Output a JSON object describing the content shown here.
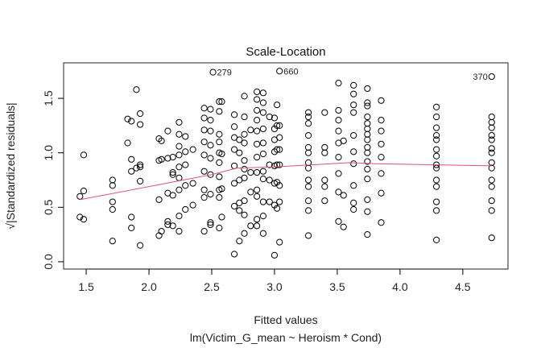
{
  "chart_data": {
    "type": "scatter",
    "title": "Scale-Location",
    "xlabel": "Fitted values",
    "subtitle": "lm(Victim_G_mean ~ Heroism * Cond)",
    "ylabel": "√|Standardized residuals|",
    "xlim": [
      1.32,
      4.86
    ],
    "ylim": [
      -0.067,
      1.826
    ],
    "x_ticks": [
      1.5,
      2.0,
      2.5,
      3.0,
      3.5,
      4.0,
      4.5
    ],
    "x_tick_labels": [
      "1.5",
      "2.0",
      "2.5",
      "3.0",
      "3.5",
      "4.0",
      "4.5"
    ],
    "y_ticks": [
      0.0,
      0.5,
      1.0,
      1.5
    ],
    "y_tick_labels": [
      "0.0",
      "0.5",
      "1.0",
      "1.5"
    ],
    "grid": false,
    "line_color": "#DF536B",
    "annotations": [
      {
        "label": "279",
        "x": 2.51,
        "y": 1.74,
        "side": "right"
      },
      {
        "label": "660",
        "x": 3.04,
        "y": 1.75,
        "side": "right"
      },
      {
        "label": "370",
        "x": 4.73,
        "y": 1.7,
        "side": "left"
      }
    ],
    "smooth_line": [
      [
        1.45,
        0.57
      ],
      [
        2.0,
        0.69
      ],
      [
        2.5,
        0.8
      ],
      [
        2.7,
        0.86
      ],
      [
        3.0,
        0.87
      ],
      [
        3.3,
        0.89
      ],
      [
        3.6,
        0.91
      ],
      [
        3.8,
        0.9
      ],
      [
        4.3,
        0.89
      ],
      [
        4.73,
        0.88
      ]
    ],
    "points": [
      [
        1.45,
        0.6
      ],
      [
        1.48,
        0.98
      ],
      [
        1.48,
        0.65
      ],
      [
        1.45,
        0.41
      ],
      [
        1.48,
        0.39
      ],
      [
        1.71,
        0.75
      ],
      [
        1.71,
        0.7
      ],
      [
        1.71,
        0.55
      ],
      [
        1.71,
        0.48
      ],
      [
        1.71,
        0.19
      ],
      [
        1.83,
        1.09
      ],
      [
        1.83,
        1.31
      ],
      [
        1.86,
        1.29
      ],
      [
        1.86,
        0.94
      ],
      [
        1.86,
        0.83
      ],
      [
        1.86,
        0.41
      ],
      [
        1.86,
        0.31
      ],
      [
        1.9,
        1.58
      ],
      [
        1.9,
        0.86
      ],
      [
        1.93,
        1.36
      ],
      [
        1.93,
        1.26
      ],
      [
        1.93,
        0.89
      ],
      [
        1.93,
        0.87
      ],
      [
        1.93,
        0.74
      ],
      [
        1.93,
        0.15
      ],
      [
        2.08,
        1.13
      ],
      [
        2.08,
        0.93
      ],
      [
        2.08,
        0.57
      ],
      [
        2.08,
        0.24
      ],
      [
        2.1,
        1.11
      ],
      [
        2.1,
        0.94
      ],
      [
        2.1,
        0.28
      ],
      [
        2.15,
        1.2
      ],
      [
        2.15,
        0.95
      ],
      [
        2.15,
        0.63
      ],
      [
        2.15,
        0.37
      ],
      [
        2.15,
        0.34
      ],
      [
        2.19,
        0.96
      ],
      [
        2.19,
        0.82
      ],
      [
        2.19,
        0.8
      ],
      [
        2.19,
        0.61
      ],
      [
        2.19,
        0.33
      ],
      [
        2.24,
        1.28
      ],
      [
        2.24,
        1.17
      ],
      [
        2.24,
        1.06
      ],
      [
        2.24,
        0.98
      ],
      [
        2.24,
        0.87
      ],
      [
        2.24,
        0.77
      ],
      [
        2.24,
        0.66
      ],
      [
        2.24,
        0.42
      ],
      [
        2.24,
        0.28
      ],
      [
        2.29,
        1.15
      ],
      [
        2.29,
        1.01
      ],
      [
        2.29,
        0.89
      ],
      [
        2.29,
        0.7
      ],
      [
        2.29,
        0.48
      ],
      [
        2.35,
        1.03
      ],
      [
        2.35,
        0.72
      ],
      [
        2.35,
        0.52
      ],
      [
        2.44,
        1.41
      ],
      [
        2.44,
        1.32
      ],
      [
        2.44,
        1.21
      ],
      [
        2.44,
        1.1
      ],
      [
        2.44,
        0.98
      ],
      [
        2.44,
        0.83
      ],
      [
        2.44,
        0.66
      ],
      [
        2.44,
        0.59
      ],
      [
        2.44,
        0.28
      ],
      [
        2.49,
        1.4
      ],
      [
        2.49,
        1.3
      ],
      [
        2.49,
        1.2
      ],
      [
        2.49,
        1.07
      ],
      [
        2.49,
        0.95
      ],
      [
        2.49,
        0.8
      ],
      [
        2.49,
        0.62
      ],
      [
        2.49,
        0.36
      ],
      [
        2.49,
        0.34
      ],
      [
        2.51,
        1.74
      ],
      [
        2.56,
        1.47
      ],
      [
        2.56,
        1.38
      ],
      [
        2.56,
        1.17
      ],
      [
        2.56,
        1.1
      ],
      [
        2.56,
        1.0
      ],
      [
        2.56,
        0.91
      ],
      [
        2.56,
        0.78
      ],
      [
        2.56,
        0.66
      ],
      [
        2.56,
        0.59
      ],
      [
        2.56,
        0.31
      ],
      [
        2.58,
        1.47
      ],
      [
        2.58,
        0.99
      ],
      [
        2.58,
        0.67
      ],
      [
        2.58,
        0.41
      ],
      [
        2.68,
        1.35
      ],
      [
        2.68,
        1.24
      ],
      [
        2.68,
        1.14
      ],
      [
        2.68,
        1.03
      ],
      [
        2.68,
        0.88
      ],
      [
        2.68,
        0.72
      ],
      [
        2.68,
        0.51
      ],
      [
        2.68,
        0.07
      ],
      [
        2.72,
        1.12
      ],
      [
        2.72,
        1.0
      ],
      [
        2.72,
        0.75
      ],
      [
        2.72,
        0.54
      ],
      [
        2.72,
        0.47
      ],
      [
        2.72,
        0.19
      ],
      [
        2.76,
        1.52
      ],
      [
        2.76,
        1.33
      ],
      [
        2.76,
        1.17
      ],
      [
        2.76,
        1.09
      ],
      [
        2.76,
        0.93
      ],
      [
        2.76,
        0.85
      ],
      [
        2.76,
        0.77
      ],
      [
        2.76,
        0.56
      ],
      [
        2.76,
        0.43
      ],
      [
        2.76,
        0.26
      ],
      [
        2.81,
        1.21
      ],
      [
        2.81,
        0.82
      ],
      [
        2.81,
        0.64
      ],
      [
        2.81,
        0.33
      ],
      [
        2.86,
        1.56
      ],
      [
        2.86,
        1.49
      ],
      [
        2.86,
        1.39
      ],
      [
        2.86,
        1.3
      ],
      [
        2.86,
        1.2
      ],
      [
        2.86,
        1.08
      ],
      [
        2.86,
        0.96
      ],
      [
        2.86,
        0.82
      ],
      [
        2.86,
        0.66
      ],
      [
        2.86,
        0.6
      ],
      [
        2.86,
        0.39
      ],
      [
        2.86,
        0.33
      ],
      [
        2.91,
        1.55
      ],
      [
        2.91,
        1.46
      ],
      [
        2.91,
        1.37
      ],
      [
        2.91,
        1.22
      ],
      [
        2.91,
        1.09
      ],
      [
        2.91,
        0.99
      ],
      [
        2.91,
        0.83
      ],
      [
        2.91,
        0.76
      ],
      [
        2.91,
        0.55
      ],
      [
        2.91,
        0.42
      ],
      [
        2.91,
        0.26
      ],
      [
        2.96,
        1.33
      ],
      [
        2.96,
        0.89
      ],
      [
        2.96,
        0.75
      ],
      [
        2.96,
        0.55
      ],
      [
        3.0,
        1.32
      ],
      [
        3.0,
        1.22
      ],
      [
        3.0,
        1.12
      ],
      [
        3.0,
        1.01
      ],
      [
        3.0,
        0.88
      ],
      [
        3.0,
        0.72
      ],
      [
        3.0,
        0.52
      ],
      [
        3.0,
        0.06
      ],
      [
        3.02,
        1.44
      ],
      [
        3.02,
        1.25
      ],
      [
        3.02,
        1.03
      ],
      [
        3.02,
        0.89
      ],
      [
        3.02,
        0.73
      ],
      [
        3.02,
        0.49
      ],
      [
        3.04,
        1.75
      ],
      [
        3.04,
        1.25
      ],
      [
        3.04,
        1.14
      ],
      [
        3.04,
        1.03
      ],
      [
        3.04,
        0.89
      ],
      [
        3.04,
        0.7
      ],
      [
        3.04,
        0.55
      ],
      [
        3.04,
        0.18
      ],
      [
        3.27,
        1.37
      ],
      [
        3.27,
        1.33
      ],
      [
        3.27,
        1.27
      ],
      [
        3.27,
        1.16
      ],
      [
        3.27,
        1.05
      ],
      [
        3.27,
        1.0
      ],
      [
        3.27,
        0.91
      ],
      [
        3.27,
        0.86
      ],
      [
        3.27,
        0.75
      ],
      [
        3.27,
        0.69
      ],
      [
        3.27,
        0.56
      ],
      [
        3.27,
        0.47
      ],
      [
        3.27,
        0.24
      ],
      [
        3.4,
        1.37
      ],
      [
        3.4,
        1.05
      ],
      [
        3.4,
        1.0
      ],
      [
        3.4,
        0.75
      ],
      [
        3.4,
        0.69
      ],
      [
        3.4,
        0.56
      ],
      [
        3.51,
        1.64
      ],
      [
        3.51,
        1.39
      ],
      [
        3.51,
        1.3
      ],
      [
        3.51,
        1.2
      ],
      [
        3.51,
        1.09
      ],
      [
        3.51,
        0.96
      ],
      [
        3.51,
        0.81
      ],
      [
        3.51,
        0.64
      ],
      [
        3.51,
        0.37
      ],
      [
        3.55,
        1.11
      ],
      [
        3.55,
        0.61
      ],
      [
        3.55,
        0.32
      ],
      [
        3.63,
        1.62
      ],
      [
        3.63,
        1.54
      ],
      [
        3.63,
        1.44
      ],
      [
        3.63,
        1.37
      ],
      [
        3.63,
        1.16
      ],
      [
        3.63,
        1.01
      ],
      [
        3.63,
        0.9
      ],
      [
        3.63,
        0.7
      ],
      [
        3.63,
        0.54
      ],
      [
        3.63,
        0.48
      ],
      [
        3.74,
        1.59
      ],
      [
        3.74,
        1.46
      ],
      [
        3.74,
        1.43
      ],
      [
        3.74,
        1.33
      ],
      [
        3.74,
        1.27
      ],
      [
        3.74,
        1.22
      ],
      [
        3.74,
        1.17
      ],
      [
        3.74,
        1.12
      ],
      [
        3.74,
        1.05
      ],
      [
        3.74,
        1.0
      ],
      [
        3.74,
        0.92
      ],
      [
        3.74,
        0.85
      ],
      [
        3.74,
        0.76
      ],
      [
        3.74,
        0.57
      ],
      [
        3.74,
        0.46
      ],
      [
        3.74,
        0.25
      ],
      [
        3.85,
        1.48
      ],
      [
        3.85,
        1.3
      ],
      [
        3.85,
        1.2
      ],
      [
        3.85,
        1.08
      ],
      [
        3.85,
        0.96
      ],
      [
        3.85,
        0.81
      ],
      [
        3.85,
        0.63
      ],
      [
        3.85,
        0.36
      ],
      [
        4.29,
        1.42
      ],
      [
        4.29,
        1.33
      ],
      [
        4.29,
        1.23
      ],
      [
        4.29,
        1.16
      ],
      [
        4.29,
        1.12
      ],
      [
        4.29,
        1.03
      ],
      [
        4.29,
        0.97
      ],
      [
        4.29,
        0.89
      ],
      [
        4.29,
        0.86
      ],
      [
        4.29,
        0.75
      ],
      [
        4.29,
        0.69
      ],
      [
        4.29,
        0.55
      ],
      [
        4.29,
        0.47
      ],
      [
        4.29,
        0.2
      ],
      [
        4.73,
        1.7
      ],
      [
        4.73,
        1.33
      ],
      [
        4.73,
        1.28
      ],
      [
        4.73,
        1.23
      ],
      [
        4.73,
        1.16
      ],
      [
        4.73,
        1.12
      ],
      [
        4.73,
        1.04
      ],
      [
        4.73,
        1.0
      ],
      [
        4.73,
        0.91
      ],
      [
        4.73,
        0.86
      ],
      [
        4.73,
        0.75
      ],
      [
        4.73,
        0.69
      ],
      [
        4.73,
        0.56
      ],
      [
        4.73,
        0.47
      ],
      [
        4.73,
        0.22
      ]
    ]
  }
}
